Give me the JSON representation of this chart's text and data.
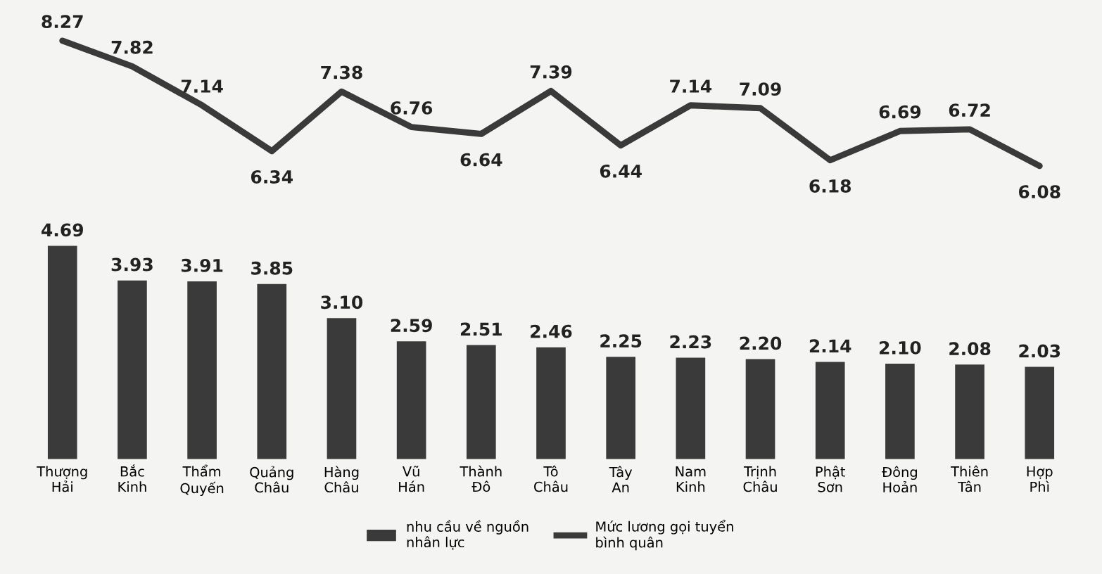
{
  "chart_data": [
    {
      "type": "line",
      "categories": [
        null,
        null,
        null,
        null,
        null,
        null,
        null,
        null,
        null,
        null,
        null,
        null,
        null,
        null,
        null
      ],
      "tick_labels": false,
      "series": [
        {
          "name": "Mức lương gọi tuyển\nbình quân",
          "color": "#3a3a3a",
          "values": [
            8.27,
            7.82,
            7.14,
            6.34,
            7.38,
            6.76,
            6.64,
            7.39,
            6.44,
            7.14,
            7.09,
            6.18,
            6.69,
            6.72,
            6.08
          ],
          "value_labels": [
            "8.27",
            "7.82",
            "7.14",
            "6.34",
            "7.38",
            "6.76",
            "6.64",
            "7.39",
            "6.44",
            "7.14",
            "7.09",
            "6.18",
            "6.69",
            "6.72",
            "6.08"
          ]
        }
      ]
    },
    {
      "type": "bar",
      "categories": [
        "Thượng\nHải",
        "Bắc\nKinh",
        "Thẩm\nQuyến",
        "Quảng\nChâu",
        "Hàng\nChâu",
        "Vũ\nHán",
        "Thành\nĐô",
        "Tô\nChâu",
        "Tây\nAn",
        "Nam\nKinh",
        "Trịnh\nChâu",
        "Phật\nSơn",
        "Đông\nHoản",
        "Thiên\nTân",
        "Hợp\nPhì"
      ],
      "tick_labels": "x",
      "series": [
        {
          "name": "nhu cầu về nguồn\nnhân lực",
          "color": "#3a3a3a",
          "values": [
            4.69,
            3.93,
            3.91,
            3.85,
            3.1,
            2.59,
            2.51,
            2.46,
            2.25,
            2.23,
            2.2,
            2.14,
            2.1,
            2.08,
            2.03
          ],
          "value_labels": [
            "4.69",
            "3.93",
            "3.91",
            "3.85",
            "3.10",
            "2.59",
            "2.51",
            "2.46",
            "2.25",
            "2.23",
            "2.20",
            "2.14",
            "2.10",
            "2.08",
            "2.03"
          ]
        }
      ],
      "legend": "bottom"
    }
  ]
}
